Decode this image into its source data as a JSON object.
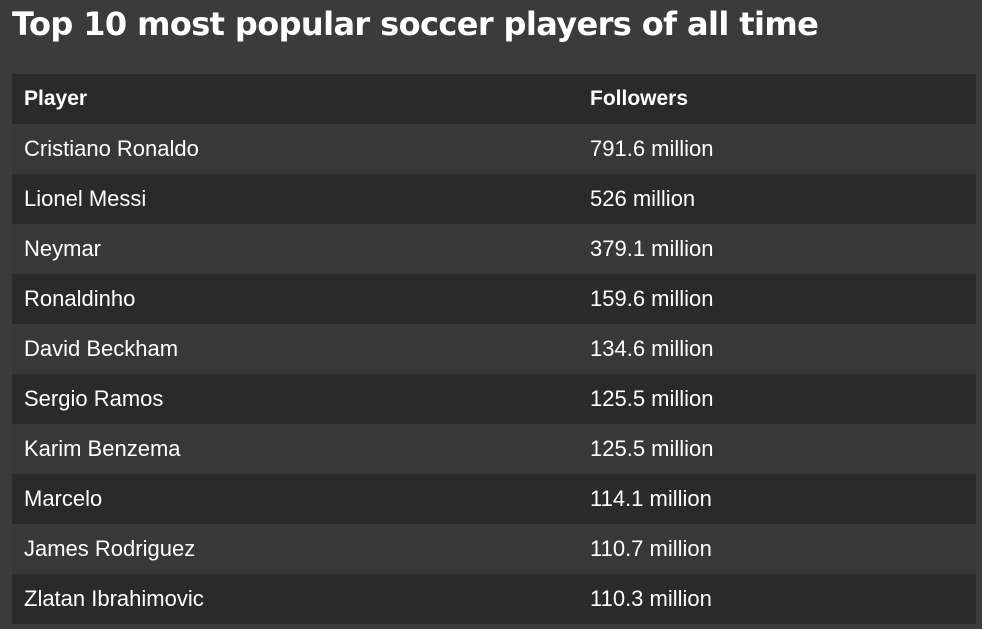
{
  "title": "Top 10 most popular soccer players of all time",
  "table": {
    "headers": {
      "player": "Player",
      "followers": "Followers"
    },
    "rows": [
      {
        "player": "Cristiano Ronaldo",
        "followers": "791.6 million"
      },
      {
        "player": "Lionel Messi",
        "followers": "526 million"
      },
      {
        "player": "Neymar",
        "followers": "379.1 million"
      },
      {
        "player": "Ronaldinho",
        "followers": "159.6 million"
      },
      {
        "player": "David Beckham",
        "followers": "134.6 million"
      },
      {
        "player": "Sergio Ramos",
        "followers": "125.5 million"
      },
      {
        "player": "Karim Benzema",
        "followers": "125.5 million"
      },
      {
        "player": "Marcelo",
        "followers": "114.1 million"
      },
      {
        "player": "James Rodriguez",
        "followers": "110.7 million"
      },
      {
        "player": "Zlatan Ibrahimovic",
        "followers": "110.3 million"
      }
    ]
  }
}
